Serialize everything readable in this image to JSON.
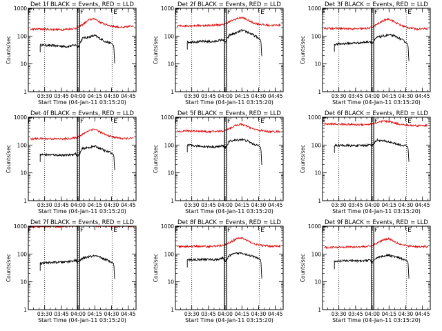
{
  "colors": {
    "events": "#000000",
    "lld": "#e01010",
    "axes": "#000000",
    "background": "#ffffff"
  },
  "common": {
    "ylabel": "Counts/sec",
    "xlabel": "Start Time (04-Jan-11 03:15:20)",
    "y_scale": "log",
    "ylim": [
      1,
      1000
    ],
    "y_ticks": [
      1,
      10,
      100,
      1000
    ],
    "y_tick_labels": [
      "1",
      "10",
      "100",
      "1000"
    ],
    "x_tick_labels": [
      "03:30",
      "03:45",
      "04:00",
      "04:15",
      "04:30",
      "04:45"
    ],
    "x_tick_minutes": [
      210,
      225,
      240,
      255,
      270,
      285
    ],
    "xlim_minutes": [
      195.33,
      292
    ],
    "markers": {
      "start_label": "F",
      "end_label": "E",
      "start_min": 195.6,
      "box_min": [
        239.3,
        241.3
      ],
      "box_label": "F",
      "end_min": 273.5
    },
    "dotted_lines_min": [
      210,
      240,
      270.5
    ]
  },
  "chart_data": [
    {
      "type": "line",
      "title": "Det 1f BLACK = Events, RED = LLD",
      "series": [
        {
          "name": "Events",
          "x": [
            206,
            210,
            220,
            230,
            238,
            240,
            244,
            250,
            255,
            260,
            265,
            270,
            272,
            273
          ],
          "y": [
            48,
            47,
            45,
            42,
            48,
            40,
            85,
            92,
            105,
            80,
            62,
            55,
            45,
            8
          ]
        },
        {
          "name": "LLD",
          "x": [
            197,
            205,
            215,
            225,
            232,
            238,
            244,
            250,
            255,
            260,
            265,
            270,
            280,
            290
          ],
          "y": [
            175,
            180,
            175,
            170,
            180,
            190,
            260,
            390,
            420,
            310,
            260,
            230,
            200,
            240
          ]
        }
      ]
    },
    {
      "type": "line",
      "title": "Det 2f BLACK = Events, RED = LLD",
      "series": [
        {
          "name": "Events",
          "x": [
            206,
            210,
            220,
            230,
            238,
            240,
            244,
            250,
            255,
            260,
            265,
            270,
            272,
            273
          ],
          "y": [
            60,
            62,
            64,
            63,
            75,
            60,
            110,
            130,
            160,
            140,
            110,
            85,
            70,
            15
          ]
        },
        {
          "name": "LLD",
          "x": [
            197,
            205,
            215,
            225,
            232,
            238,
            244,
            250,
            255,
            260,
            265,
            270,
            280,
            290
          ],
          "y": [
            230,
            235,
            240,
            240,
            250,
            255,
            330,
            420,
            470,
            380,
            300,
            270,
            240,
            250
          ]
        }
      ]
    },
    {
      "type": "line",
      "title": "Det 3f BLACK = Events, RED = LLD",
      "series": [
        {
          "name": "Events",
          "x": [
            206,
            210,
            220,
            230,
            238,
            240,
            244,
            250,
            255,
            260,
            265,
            270,
            272,
            273
          ],
          "y": [
            50,
            52,
            55,
            58,
            64,
            55,
            90,
            100,
            110,
            100,
            80,
            60,
            50,
            10
          ]
        },
        {
          "name": "LLD",
          "x": [
            197,
            205,
            215,
            225,
            232,
            238,
            244,
            250,
            255,
            260,
            265,
            270,
            280,
            290
          ],
          "y": [
            190,
            190,
            185,
            180,
            185,
            195,
            260,
            360,
            420,
            320,
            250,
            210,
            180,
            190
          ]
        }
      ]
    },
    {
      "type": "line",
      "title": "Det 4f BLACK = Events, RED = LLD",
      "series": [
        {
          "name": "Events",
          "x": [
            206,
            210,
            220,
            230,
            238,
            240,
            244,
            250,
            255,
            260,
            265,
            270,
            272,
            273
          ],
          "y": [
            45,
            45,
            44,
            43,
            48,
            40,
            75,
            82,
            90,
            75,
            60,
            52,
            45,
            10
          ]
        },
        {
          "name": "LLD",
          "x": [
            197,
            205,
            215,
            225,
            232,
            238,
            244,
            250,
            255,
            260,
            265,
            270,
            280,
            290
          ],
          "y": [
            165,
            170,
            168,
            165,
            170,
            180,
            240,
            340,
            380,
            290,
            230,
            200,
            170,
            175
          ]
        }
      ]
    },
    {
      "type": "line",
      "title": "Det 5f BLACK = Events, RED = LLD",
      "series": [
        {
          "name": "Events",
          "x": [
            206,
            210,
            220,
            230,
            238,
            240,
            244,
            250,
            255,
            260,
            265,
            270,
            272,
            273
          ],
          "y": [
            100,
            95,
            90,
            85,
            92,
            80,
            140,
            150,
            160,
            140,
            110,
            95,
            80,
            15
          ]
        },
        {
          "name": "LLD",
          "x": [
            197,
            205,
            215,
            225,
            232,
            238,
            244,
            250,
            255,
            260,
            265,
            270,
            280,
            290
          ],
          "y": [
            310,
            320,
            320,
            300,
            310,
            320,
            400,
            520,
            560,
            460,
            380,
            340,
            300,
            310
          ]
        }
      ]
    },
    {
      "type": "line",
      "title": "Det 6f BLACK = Events, RED = LLD",
      "series": [
        {
          "name": "Events",
          "x": [
            206,
            210,
            220,
            230,
            238,
            240,
            244,
            250,
            255,
            260,
            265,
            270,
            272,
            273
          ],
          "y": [
            95,
            98,
            95,
            95,
            102,
            98,
            150,
            140,
            130,
            115,
            100,
            95,
            85,
            20
          ]
        },
        {
          "name": "LLD",
          "x": [
            197,
            205,
            215,
            225,
            232,
            238,
            244,
            250,
            255,
            260,
            265,
            270,
            280,
            290
          ],
          "y": [
            560,
            570,
            560,
            540,
            550,
            560,
            620,
            720,
            700,
            620,
            560,
            520,
            500,
            510
          ]
        }
      ]
    },
    {
      "type": "line",
      "title": "Det 7f BLACK = Events, RED = LLD",
      "series": [
        {
          "name": "Events",
          "x": [
            206,
            210,
            220,
            230,
            238,
            240,
            244,
            250,
            255,
            260,
            265,
            270,
            272,
            273
          ],
          "y": [
            45,
            48,
            50,
            52,
            60,
            50,
            70,
            80,
            85,
            75,
            62,
            52,
            45,
            10
          ]
        },
        {
          "name": "LLD",
          "x": [
            197,
            205,
            215,
            225,
            232,
            238,
            244,
            250,
            255,
            260,
            265,
            270,
            280,
            290
          ],
          "y": [
            950,
            980,
            1000,
            980,
            1000,
            1050,
            1100,
            1080,
            1000,
            1020,
            1000,
            980,
            990,
            1000
          ]
        }
      ]
    },
    {
      "type": "line",
      "title": "Det 8f BLACK = Events, RED = LLD",
      "series": [
        {
          "name": "Events",
          "x": [
            206,
            210,
            220,
            230,
            238,
            240,
            244,
            250,
            255,
            260,
            265,
            270,
            272,
            273
          ],
          "y": [
            60,
            62,
            65,
            62,
            70,
            55,
            90,
            105,
            110,
            95,
            80,
            70,
            60,
            10
          ]
        },
        {
          "name": "LLD",
          "x": [
            197,
            205,
            215,
            225,
            232,
            238,
            244,
            250,
            255,
            260,
            265,
            270,
            280,
            290
          ],
          "y": [
            180,
            185,
            190,
            185,
            195,
            200,
            260,
            350,
            380,
            300,
            240,
            210,
            190,
            195
          ]
        }
      ]
    },
    {
      "type": "line",
      "title": "Det 9f BLACK = Events, RED = LLD",
      "series": [
        {
          "name": "Events",
          "x": [
            206,
            210,
            220,
            230,
            238,
            240,
            244,
            250,
            255,
            260,
            265,
            270,
            272,
            273
          ],
          "y": [
            52,
            55,
            58,
            55,
            62,
            50,
            75,
            85,
            90,
            80,
            70,
            60,
            55,
            10
          ]
        },
        {
          "name": "LLD",
          "x": [
            197,
            205,
            215,
            225,
            232,
            238,
            244,
            250,
            255,
            260,
            265,
            270,
            280,
            290
          ],
          "y": [
            170,
            175,
            180,
            178,
            185,
            190,
            240,
            330,
            360,
            280,
            225,
            200,
            180,
            185
          ]
        }
      ]
    }
  ]
}
